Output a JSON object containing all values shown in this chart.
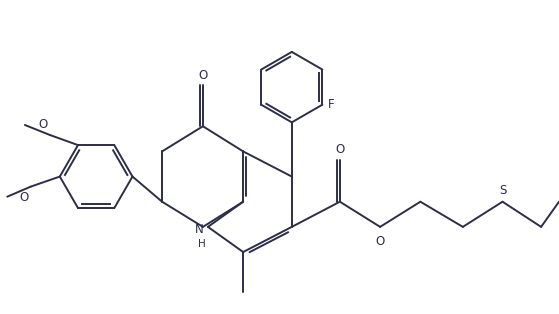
{
  "background_color": "#ffffff",
  "line_color": "#2d2d4a",
  "line_width": 1.4,
  "figsize": [
    5.59,
    3.14
  ],
  "dpi": 100,
  "xlim": [
    0,
    10.0
  ],
  "ylim": [
    0,
    5.6
  ]
}
